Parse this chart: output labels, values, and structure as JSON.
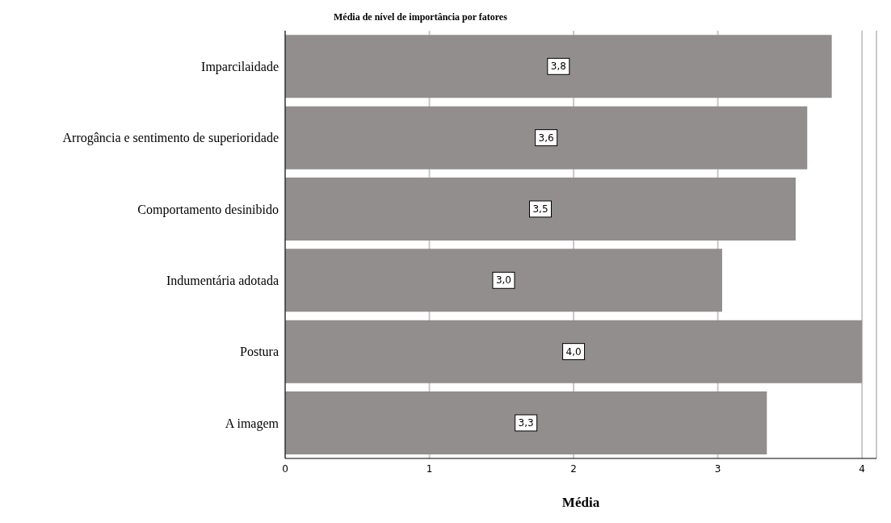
{
  "chart_data": {
    "type": "bar",
    "orientation": "horizontal",
    "title": "Média de nível de importância por fatores",
    "xlabel": "Média",
    "categories": [
      "Imparcilaidade",
      "Arrogância e sentimento de superioridade",
      "Comportamento desinibido",
      "Indumentária adotada",
      "Postura",
      "A imagem"
    ],
    "values": [
      3.79,
      3.62,
      3.54,
      3.03,
      4.0,
      3.34
    ],
    "value_labels": [
      "3,8",
      "3,6",
      "3,5",
      "3,0",
      "4,0",
      "3,3"
    ],
    "color": "#928e8d",
    "xlim": [
      0,
      4.1
    ],
    "xticks": [
      0,
      1,
      2,
      3,
      4
    ],
    "grid": "x"
  }
}
